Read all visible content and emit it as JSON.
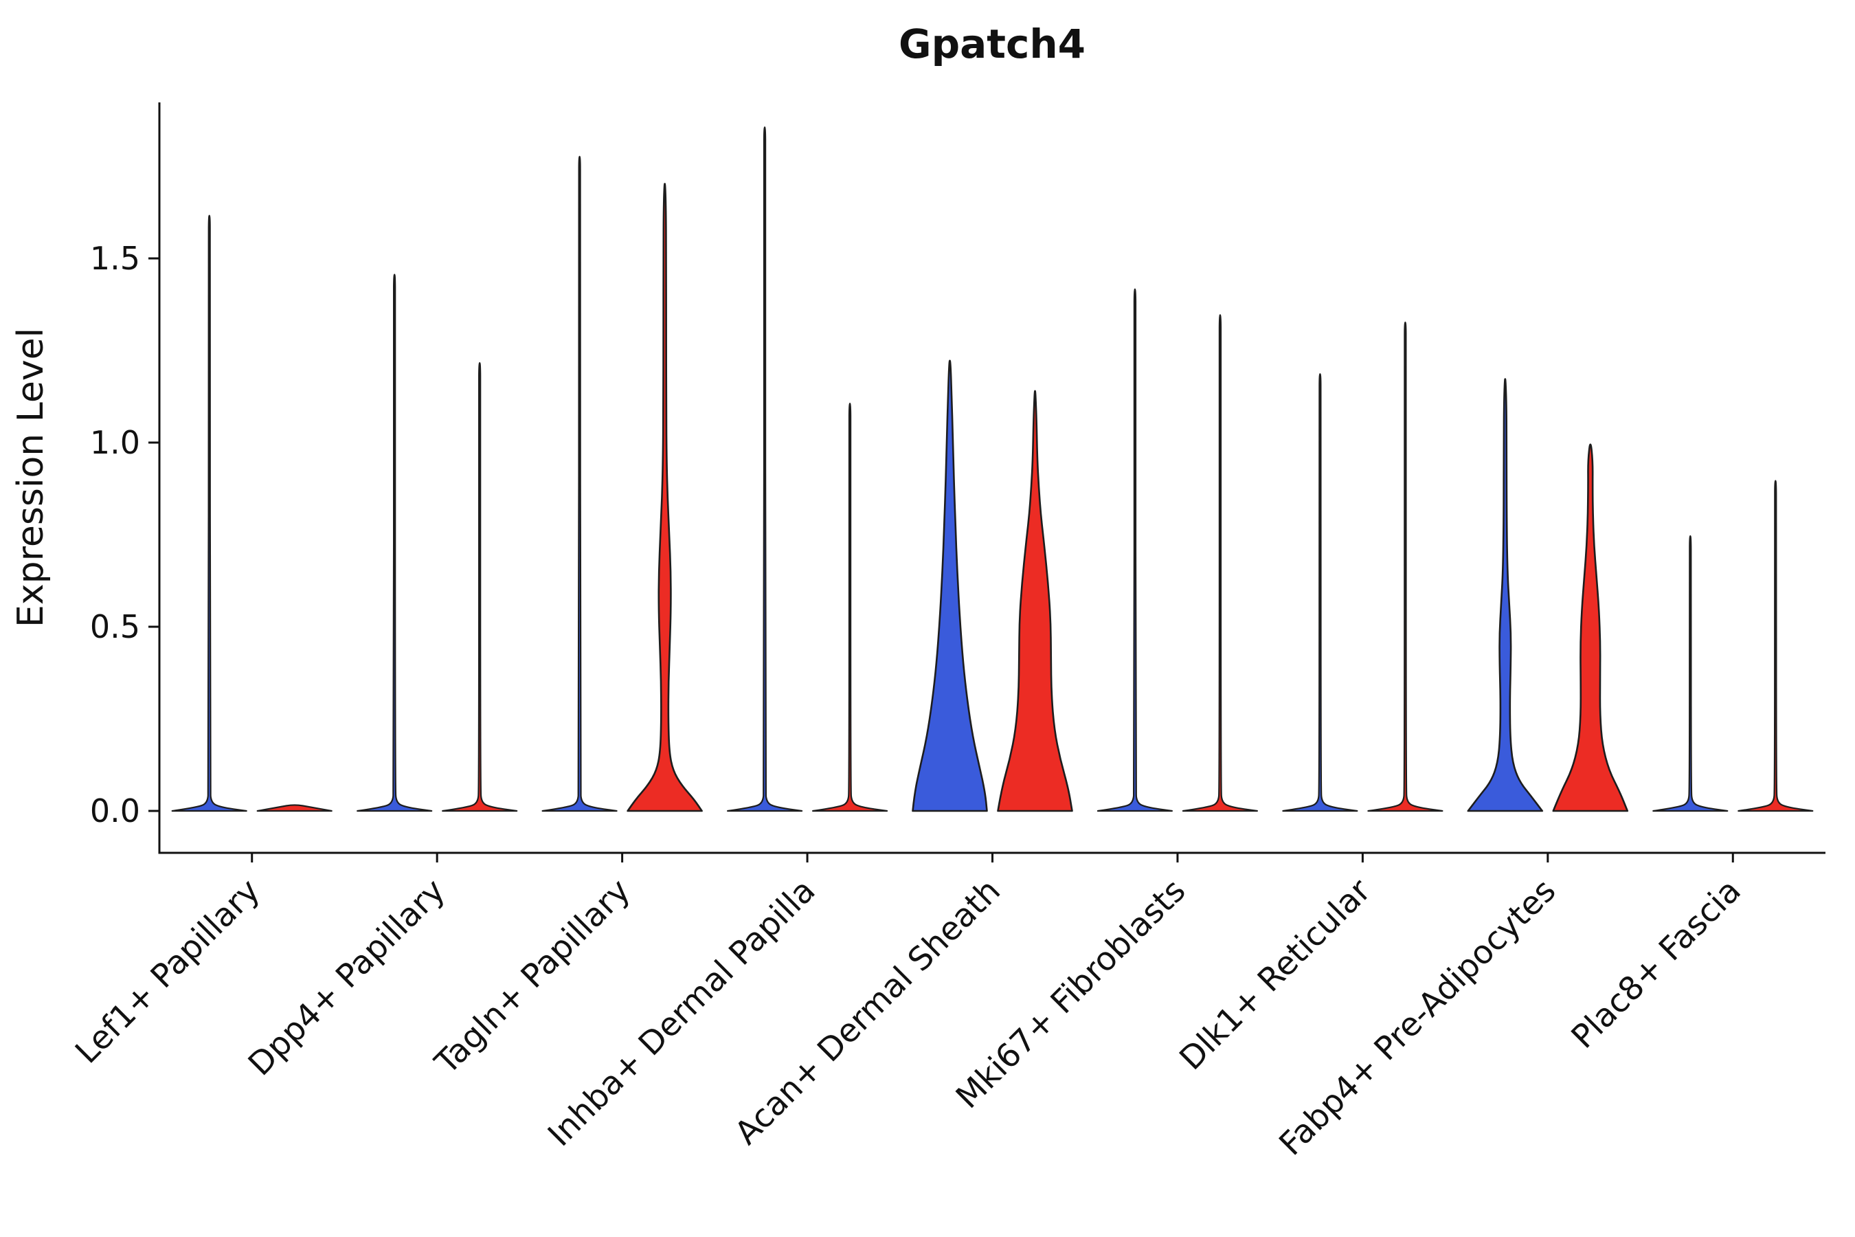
{
  "chart_data": {
    "type": "violin",
    "title": "Gpatch4",
    "ylabel": "Expression Level",
    "xlabel": "",
    "ylim": [
      -0.11,
      1.92
    ],
    "yticks": [
      0.0,
      0.5,
      1.0,
      1.5
    ],
    "grid": false,
    "legend": "none",
    "group_colors": {
      "blue": "#3A5BDB",
      "red": "#EC2C24"
    },
    "outline_color": "#1d1d1d",
    "categories": [
      "Lef1+ Papillary",
      "Dpp4+ Papillary",
      "Tagln+ Papillary",
      "Inhba+ Dermal Papilla",
      "Acan+ Dermal Sheath",
      "Mki67+ Fibroblasts",
      "Dlk1+ Reticular",
      "Fabp4+ Pre-Adipocytes",
      "Plac8+ Fascia"
    ],
    "violins": [
      {
        "category": "Lef1+ Papillary",
        "side": "left",
        "group_color": "blue",
        "shape": "spike",
        "max": 1.62
      },
      {
        "category": "Lef1+ Papillary",
        "side": "right",
        "group_color": "red",
        "shape": "flat",
        "max": 0.0
      },
      {
        "category": "Dpp4+ Papillary",
        "side": "left",
        "group_color": "blue",
        "shape": "spike",
        "max": 1.46
      },
      {
        "category": "Dpp4+ Papillary",
        "side": "right",
        "group_color": "red",
        "shape": "spike",
        "max": 1.22
      },
      {
        "category": "Tagln+ Papillary",
        "side": "left",
        "group_color": "blue",
        "shape": "spike",
        "max": 1.78
      },
      {
        "category": "Tagln+ Papillary",
        "side": "right",
        "group_color": "red",
        "shape": "violin",
        "max": 1.72,
        "profile": [
          [
            0,
            1.0
          ],
          [
            0.03,
            0.8
          ],
          [
            0.07,
            0.45
          ],
          [
            0.11,
            0.22
          ],
          [
            0.16,
            0.12
          ],
          [
            0.25,
            0.095
          ],
          [
            0.35,
            0.1
          ],
          [
            0.45,
            0.135
          ],
          [
            0.55,
            0.165
          ],
          [
            0.65,
            0.16
          ],
          [
            0.75,
            0.12
          ],
          [
            0.85,
            0.075
          ],
          [
            0.95,
            0.05
          ],
          [
            1.1,
            0.04
          ],
          [
            1.3,
            0.038
          ],
          [
            1.5,
            0.036
          ],
          [
            1.65,
            0.03
          ],
          [
            1.72,
            0.0
          ]
        ]
      },
      {
        "category": "Inhba+ Dermal Papilla",
        "side": "left",
        "group_color": "blue",
        "shape": "spike",
        "max": 1.86
      },
      {
        "category": "Inhba+ Dermal Papilla",
        "side": "right",
        "group_color": "red",
        "shape": "spike",
        "max": 1.11
      },
      {
        "category": "Acan+ Dermal Sheath",
        "side": "left",
        "group_color": "blue",
        "shape": "violin",
        "max": 1.23,
        "profile": [
          [
            0,
            1.0
          ],
          [
            0.05,
            0.95
          ],
          [
            0.12,
            0.8
          ],
          [
            0.2,
            0.62
          ],
          [
            0.3,
            0.47
          ],
          [
            0.4,
            0.36
          ],
          [
            0.52,
            0.27
          ],
          [
            0.65,
            0.2
          ],
          [
            0.78,
            0.15
          ],
          [
            0.9,
            0.11
          ],
          [
            1.02,
            0.08
          ],
          [
            1.12,
            0.05
          ],
          [
            1.2,
            0.025
          ],
          [
            1.23,
            0.0
          ]
        ]
      },
      {
        "category": "Acan+ Dermal Sheath",
        "side": "right",
        "group_color": "red",
        "shape": "violin",
        "max": 1.16,
        "profile": [
          [
            0,
            1.0
          ],
          [
            0.06,
            0.9
          ],
          [
            0.14,
            0.68
          ],
          [
            0.22,
            0.52
          ],
          [
            0.32,
            0.44
          ],
          [
            0.42,
            0.43
          ],
          [
            0.52,
            0.42
          ],
          [
            0.62,
            0.35
          ],
          [
            0.72,
            0.25
          ],
          [
            0.8,
            0.16
          ],
          [
            0.88,
            0.1
          ],
          [
            0.96,
            0.06
          ],
          [
            1.08,
            0.035
          ],
          [
            1.16,
            0.0
          ]
        ]
      },
      {
        "category": "Mki67+ Fibroblasts",
        "side": "left",
        "group_color": "blue",
        "shape": "spike",
        "max": 1.42
      },
      {
        "category": "Mki67+ Fibroblasts",
        "side": "right",
        "group_color": "red",
        "shape": "spike",
        "max": 1.35
      },
      {
        "category": "Dlk1+ Reticular",
        "side": "left",
        "group_color": "blue",
        "shape": "spike",
        "max": 1.19
      },
      {
        "category": "Dlk1+ Reticular",
        "side": "right",
        "group_color": "red",
        "shape": "spike",
        "max": 1.33
      },
      {
        "category": "Fabp4+ Pre-Adipocytes",
        "side": "left",
        "group_color": "blue",
        "shape": "violin",
        "max": 1.19,
        "profile": [
          [
            0,
            1.0
          ],
          [
            0.04,
            0.7
          ],
          [
            0.08,
            0.38
          ],
          [
            0.13,
            0.2
          ],
          [
            0.2,
            0.135
          ],
          [
            0.3,
            0.125
          ],
          [
            0.4,
            0.15
          ],
          [
            0.48,
            0.155
          ],
          [
            0.56,
            0.11
          ],
          [
            0.65,
            0.06
          ],
          [
            0.8,
            0.04
          ],
          [
            1.0,
            0.038
          ],
          [
            1.12,
            0.03
          ],
          [
            1.19,
            0.0
          ]
        ]
      },
      {
        "category": "Fabp4+ Pre-Adipocytes",
        "side": "right",
        "group_color": "red",
        "shape": "violin",
        "max": 1.01,
        "profile": [
          [
            0,
            1.0
          ],
          [
            0.05,
            0.8
          ],
          [
            0.11,
            0.5
          ],
          [
            0.18,
            0.32
          ],
          [
            0.26,
            0.26
          ],
          [
            0.35,
            0.26
          ],
          [
            0.45,
            0.27
          ],
          [
            0.55,
            0.23
          ],
          [
            0.64,
            0.16
          ],
          [
            0.72,
            0.1
          ],
          [
            0.8,
            0.07
          ],
          [
            0.88,
            0.06
          ],
          [
            0.95,
            0.065
          ],
          [
            1.01,
            0.0
          ]
        ]
      },
      {
        "category": "Plac8+ Fascia",
        "side": "left",
        "group_color": "blue",
        "shape": "spike",
        "max": 0.75
      },
      {
        "category": "Plac8+ Fascia",
        "side": "right",
        "group_color": "red",
        "shape": "spike",
        "max": 0.9
      }
    ]
  }
}
